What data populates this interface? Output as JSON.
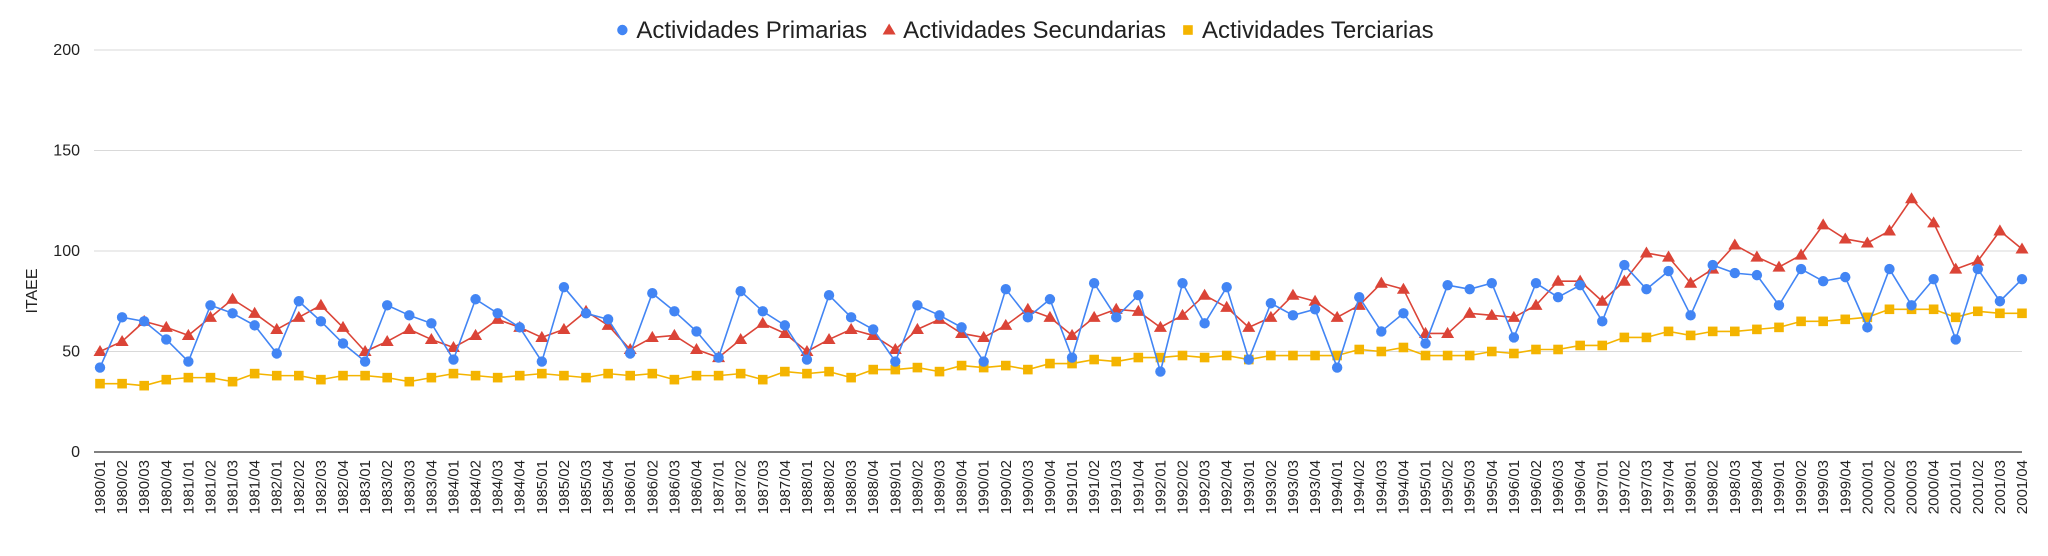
{
  "chart_data": {
    "type": "line",
    "title": "",
    "ylabel": "ITAEE",
    "xlabel": "",
    "ylim": [
      0,
      200
    ],
    "yticks": [
      "0",
      "50",
      "100",
      "150",
      "200"
    ],
    "grid": true,
    "legend_position": "top-center",
    "categories": [
      "1980/01",
      "1980/02",
      "1980/03",
      "1980/04",
      "1981/01",
      "1981/02",
      "1981/03",
      "1981/04",
      "1982/01",
      "1982/02",
      "1982/03",
      "1982/04",
      "1983/01",
      "1983/02",
      "1983/03",
      "1983/04",
      "1984/01",
      "1984/02",
      "1984/03",
      "1984/04",
      "1985/01",
      "1985/02",
      "1985/03",
      "1985/04",
      "1986/01",
      "1986/02",
      "1986/03",
      "1986/04",
      "1987/01",
      "1987/02",
      "1987/03",
      "1987/04",
      "1988/01",
      "1988/02",
      "1988/03",
      "1988/04",
      "1989/01",
      "1989/02",
      "1989/03",
      "1989/04",
      "1990/01",
      "1990/02",
      "1990/03",
      "1990/04",
      "1991/01",
      "1991/02",
      "1991/03",
      "1991/04",
      "1992/01",
      "1992/02",
      "1992/03",
      "1992/04",
      "1993/01",
      "1993/02",
      "1993/03",
      "1993/04",
      "1994/01",
      "1994/02",
      "1994/03",
      "1994/04",
      "1995/01",
      "1995/02",
      "1995/03",
      "1995/04",
      "1996/01",
      "1996/02",
      "1996/03",
      "1996/04",
      "1997/01",
      "1997/02",
      "1997/03",
      "1997/04",
      "1998/01",
      "1998/02",
      "1998/03",
      "1998/04",
      "1999/01",
      "1999/02",
      "1999/03",
      "1999/04",
      "2000/01",
      "2000/02",
      "2000/03",
      "2000/04",
      "2001/01",
      "2001/02",
      "2001/03",
      "2001/04"
    ],
    "series": [
      {
        "name": "Actividades Primarias",
        "color": "#4285f4",
        "marker": "circle",
        "values": [
          42,
          67,
          65,
          56,
          45,
          73,
          69,
          63,
          49,
          75,
          65,
          54,
          45,
          73,
          68,
          64,
          46,
          76,
          69,
          62,
          45,
          82,
          69,
          66,
          49,
          79,
          70,
          60,
          47,
          80,
          70,
          63,
          46,
          78,
          67,
          61,
          45,
          73,
          68,
          62,
          45,
          81,
          67,
          76,
          47,
          84,
          67,
          78,
          40,
          84,
          64,
          82,
          46,
          74,
          68,
          71,
          42,
          77,
          60,
          69,
          54,
          83,
          81,
          84,
          57,
          84,
          77,
          83,
          65,
          93,
          81,
          90,
          68,
          93,
          89,
          88,
          73,
          91,
          85,
          87,
          62,
          91,
          73,
          86,
          56,
          91,
          75,
          86
        ]
      },
      {
        "name": "Actividades Secundarias",
        "color": "#db4437",
        "marker": "triangle",
        "values": [
          50,
          55,
          65,
          62,
          58,
          67,
          76,
          69,
          61,
          67,
          73,
          62,
          50,
          55,
          61,
          56,
          52,
          58,
          66,
          62,
          57,
          61,
          70,
          63,
          51,
          57,
          58,
          51,
          47,
          56,
          64,
          59,
          50,
          56,
          61,
          58,
          51,
          61,
          66,
          59,
          57,
          63,
          71,
          67,
          58,
          67,
          71,
          70,
          62,
          68,
          78,
          72,
          62,
          67,
          78,
          75,
          67,
          73,
          84,
          81,
          59,
          59,
          69,
          68,
          67,
          73,
          85,
          85,
          75,
          85,
          99,
          97,
          84,
          91,
          103,
          97,
          92,
          98,
          113,
          106,
          104,
          110,
          126,
          114,
          91,
          95,
          110,
          101
        ]
      },
      {
        "name": "Actividades Terciarias",
        "color": "#f4b400",
        "marker": "square",
        "values": [
          34,
          34,
          33,
          36,
          37,
          37,
          35,
          39,
          38,
          38,
          36,
          38,
          38,
          37,
          35,
          37,
          39,
          38,
          37,
          38,
          39,
          38,
          37,
          39,
          38,
          39,
          36,
          38,
          38,
          39,
          36,
          40,
          39,
          40,
          37,
          41,
          41,
          42,
          40,
          43,
          42,
          43,
          41,
          44,
          44,
          46,
          45,
          47,
          47,
          48,
          47,
          48,
          46,
          48,
          48,
          48,
          48,
          51,
          50,
          52,
          48,
          48,
          48,
          50,
          49,
          51,
          51,
          53,
          53,
          57,
          57,
          60,
          58,
          60,
          60,
          61,
          62,
          65,
          65,
          66,
          67,
          71,
          71,
          71,
          67,
          70,
          69,
          69
        ]
      }
    ]
  }
}
